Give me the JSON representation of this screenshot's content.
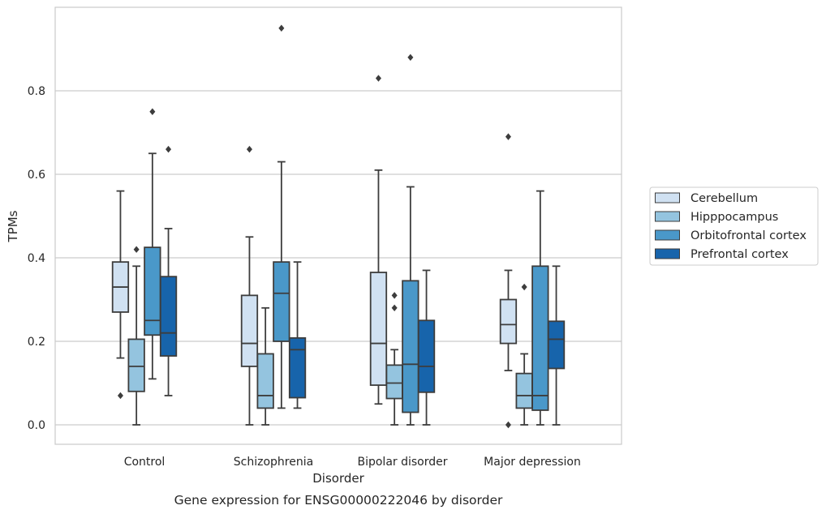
{
  "chart_data": {
    "type": "box",
    "caption": "Gene expression for ENSG00000222046 by disorder",
    "xlabel": "Disorder",
    "ylabel": "TPMs",
    "ylim": [
      -0.045,
      0.99
    ],
    "yticks": [
      "0.0",
      "0.2",
      "0.4",
      "0.6",
      "0.8"
    ],
    "grid": "horizontal",
    "legend_position": "right",
    "categories": [
      "Control",
      "Schizophrenia",
      "Bipolar disorder",
      "Major depression"
    ],
    "series": [
      {
        "name": "Cerebellum",
        "color": "#d0e1f2",
        "boxes": [
          {
            "whisker_low": 0.16,
            "q1": 0.27,
            "median": 0.33,
            "q3": 0.39,
            "whisker_high": 0.56,
            "outliers": [
              0.07
            ]
          },
          {
            "whisker_low": 0.0,
            "q1": 0.14,
            "median": 0.195,
            "q3": 0.31,
            "whisker_high": 0.45,
            "outliers": [
              0.66
            ]
          },
          {
            "whisker_low": 0.05,
            "q1": 0.095,
            "median": 0.195,
            "q3": 0.365,
            "whisker_high": 0.61,
            "outliers": [
              0.83
            ]
          },
          {
            "whisker_low": 0.13,
            "q1": 0.195,
            "median": 0.24,
            "q3": 0.3,
            "whisker_high": 0.37,
            "outliers": [
              0.69,
              0.0
            ]
          }
        ]
      },
      {
        "name": "Hipppocampus",
        "color": "#94c4df",
        "boxes": [
          {
            "whisker_low": 0.0,
            "q1": 0.08,
            "median": 0.14,
            "q3": 0.205,
            "whisker_high": 0.38,
            "outliers": [
              0.42
            ]
          },
          {
            "whisker_low": 0.0,
            "q1": 0.04,
            "median": 0.07,
            "q3": 0.17,
            "whisker_high": 0.28,
            "outliers": []
          },
          {
            "whisker_low": 0.0,
            "q1": 0.063,
            "median": 0.1,
            "q3": 0.143,
            "whisker_high": 0.18,
            "outliers": [
              0.31,
              0.28
            ]
          },
          {
            "whisker_low": 0.0,
            "q1": 0.04,
            "median": 0.07,
            "q3": 0.123,
            "whisker_high": 0.17,
            "outliers": [
              0.33
            ]
          }
        ]
      },
      {
        "name": "Orbitofrontal cortex",
        "color": "#4a98c9",
        "boxes": [
          {
            "whisker_low": 0.11,
            "q1": 0.215,
            "median": 0.25,
            "q3": 0.425,
            "whisker_high": 0.65,
            "outliers": [
              0.75
            ]
          },
          {
            "whisker_low": 0.04,
            "q1": 0.2,
            "median": 0.315,
            "q3": 0.39,
            "whisker_high": 0.63,
            "outliers": [
              0.95
            ]
          },
          {
            "whisker_low": 0.0,
            "q1": 0.03,
            "median": 0.145,
            "q3": 0.345,
            "whisker_high": 0.57,
            "outliers": [
              0.88
            ]
          },
          {
            "whisker_low": 0.0,
            "q1": 0.035,
            "median": 0.07,
            "q3": 0.38,
            "whisker_high": 0.56,
            "outliers": []
          }
        ]
      },
      {
        "name": "Prefrontal cortex",
        "color": "#1764ab",
        "boxes": [
          {
            "whisker_low": 0.07,
            "q1": 0.165,
            "median": 0.22,
            "q3": 0.355,
            "whisker_high": 0.47,
            "outliers": [
              0.66
            ]
          },
          {
            "whisker_low": 0.04,
            "q1": 0.065,
            "median": 0.18,
            "q3": 0.208,
            "whisker_high": 0.39,
            "outliers": []
          },
          {
            "whisker_low": 0.0,
            "q1": 0.078,
            "median": 0.14,
            "q3": 0.25,
            "whisker_high": 0.37,
            "outliers": []
          },
          {
            "whisker_low": 0.0,
            "q1": 0.135,
            "median": 0.205,
            "q3": 0.248,
            "whisker_high": 0.38,
            "outliers": []
          }
        ]
      }
    ]
  }
}
